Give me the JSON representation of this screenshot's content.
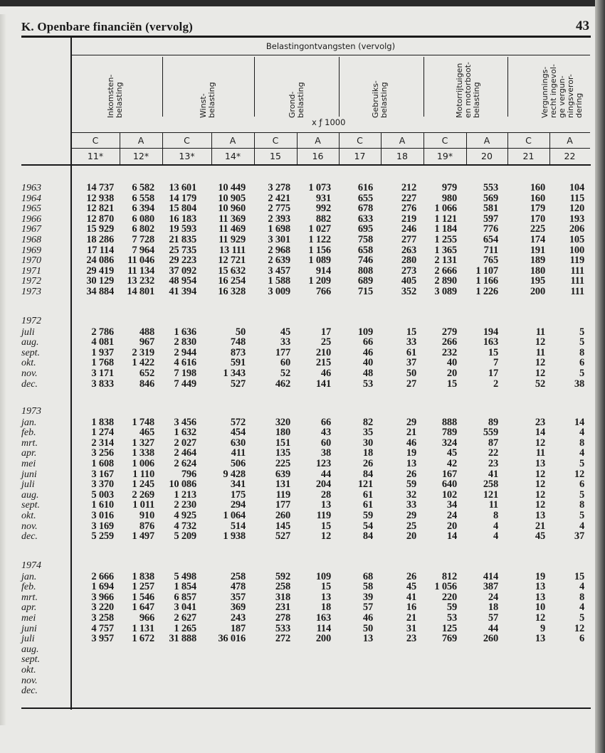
{
  "page": {
    "title": "K.  Openbare financiën (vervolg)",
    "page_number": "43"
  },
  "table": {
    "group_title": "Belastingontvangsten (vervolg)",
    "unit": "x ƒ 1000",
    "column_groups": [
      {
        "lines": [
          "Inkomsten-",
          "belasting"
        ]
      },
      {
        "lines": [
          "Winst-",
          "belasting"
        ]
      },
      {
        "lines": [
          "Grond-",
          "belasting"
        ]
      },
      {
        "lines": [
          "Gebruiks-",
          "belasting"
        ]
      },
      {
        "lines": [
          "Motorrijtuigen",
          "en motorboot-",
          "belasting"
        ]
      },
      {
        "lines": [
          "Vergunnings-",
          "recht ingevol-",
          "ge vergun-",
          "ningsveror-",
          "dering"
        ]
      }
    ],
    "ca_row": [
      "C",
      "A",
      "C",
      "A",
      "C",
      "A",
      "C",
      "A",
      "C",
      "A",
      "C",
      "A"
    ],
    "column_numbers": [
      "11*",
      "12*",
      "13*",
      "14*",
      "15",
      "16",
      "17",
      "18",
      "19*",
      "20",
      "21",
      "22"
    ],
    "sections": [
      {
        "label": "",
        "rows": [
          {
            "label": "1963",
            "values": [
              "14 737",
              "6 582",
              "13 601",
              "10 449",
              "3 278",
              "1 073",
              "616",
              "212",
              "979",
              "553",
              "160",
              "104"
            ]
          },
          {
            "label": "1964",
            "values": [
              "12 938",
              "6 558",
              "14 179",
              "10 905",
              "2 421",
              "931",
              "655",
              "227",
              "980",
              "569",
              "160",
              "115"
            ]
          },
          {
            "label": "1965",
            "values": [
              "12 821",
              "6 394",
              "15 804",
              "10 960",
              "2 775",
              "992",
              "678",
              "276",
              "1 066",
              "581",
              "179",
              "120"
            ]
          },
          {
            "label": "1966",
            "values": [
              "12 870",
              "6 080",
              "16 183",
              "11 369",
              "2 393",
              "882",
              "633",
              "219",
              "1 121",
              "597",
              "170",
              "193"
            ]
          },
          {
            "label": "1967",
            "values": [
              "15 929",
              "6 802",
              "19 593",
              "11 469",
              "1 698",
              "1 027",
              "695",
              "246",
              "1 184",
              "776",
              "225",
              "206"
            ]
          },
          {
            "label": "1968",
            "values": [
              "18 286",
              "7 728",
              "21 835",
              "11 929",
              "3 301",
              "1 122",
              "758",
              "277",
              "1 255",
              "654",
              "174",
              "105"
            ]
          },
          {
            "label": "1969",
            "values": [
              "17 114",
              "7 964",
              "25 735",
              "13 111",
              "2 968",
              "1 156",
              "658",
              "263",
              "1 365",
              "711",
              "191",
              "100"
            ]
          },
          {
            "label": "1970",
            "values": [
              "24 086",
              "11 046",
              "29 223",
              "12 721",
              "2 639",
              "1 089",
              "746",
              "280",
              "2 131",
              "765",
              "189",
              "119"
            ]
          },
          {
            "label": "1971",
            "values": [
              "29 419",
              "11 134",
              "37 092",
              "15 632",
              "3 457",
              "914",
              "808",
              "273",
              "2 666",
              "1 107",
              "180",
              "111"
            ]
          },
          {
            "label": "1972",
            "values": [
              "30 129",
              "13 232",
              "48 954",
              "16 254",
              "1 588",
              "1 209",
              "689",
              "405",
              "2 890",
              "1 166",
              "195",
              "111"
            ]
          },
          {
            "label": "1973",
            "values": [
              "34 884",
              "14 801",
              "41 394",
              "16 328",
              "3 009",
              "766",
              "715",
              "352",
              "3 089",
              "1 226",
              "200",
              "111"
            ]
          }
        ]
      },
      {
        "label": "1972",
        "rows": [
          {
            "label": "juli",
            "values": [
              "2 786",
              "488",
              "1 636",
              "50",
              "45",
              "17",
              "109",
              "15",
              "279",
              "194",
              "11",
              "5"
            ]
          },
          {
            "label": "aug.",
            "values": [
              "4 081",
              "967",
              "2 830",
              "748",
              "33",
              "25",
              "66",
              "33",
              "266",
              "163",
              "12",
              "5"
            ]
          },
          {
            "label": "sept.",
            "values": [
              "1 937",
              "2 319",
              "2 944",
              "873",
              "177",
              "210",
              "46",
              "61",
              "232",
              "15",
              "11",
              "8"
            ]
          },
          {
            "label": "okt.",
            "values": [
              "1 768",
              "1 422",
              "4 616",
              "591",
              "60",
              "215",
              "40",
              "37",
              "40",
              "7",
              "12",
              "6"
            ]
          },
          {
            "label": "nov.",
            "values": [
              "3 171",
              "652",
              "7 198",
              "1 343",
              "52",
              "46",
              "48",
              "50",
              "20",
              "17",
              "12",
              "5"
            ]
          },
          {
            "label": "dec.",
            "values": [
              "3 833",
              "846",
              "7 449",
              "527",
              "462",
              "141",
              "53",
              "27",
              "15",
              "2",
              "52",
              "38"
            ]
          }
        ]
      },
      {
        "label": "1973",
        "rows": [
          {
            "label": "jan.",
            "values": [
              "1 838",
              "1 748",
              "3 456",
              "572",
              "320",
              "66",
              "82",
              "29",
              "888",
              "89",
              "23",
              "14"
            ]
          },
          {
            "label": "feb.",
            "values": [
              "1 274",
              "465",
              "1 632",
              "454",
              "180",
              "43",
              "35",
              "21",
              "789",
              "559",
              "14",
              "4"
            ]
          },
          {
            "label": "mrt.",
            "values": [
              "2 314",
              "1 327",
              "2 027",
              "630",
              "151",
              "60",
              "30",
              "46",
              "324",
              "87",
              "12",
              "8"
            ]
          },
          {
            "label": "apr.",
            "values": [
              "3 256",
              "1 338",
              "2 464",
              "411",
              "135",
              "38",
              "18",
              "19",
              "45",
              "22",
              "11",
              "4"
            ]
          },
          {
            "label": "mei",
            "values": [
              "1 608",
              "1 006",
              "2 624",
              "506",
              "225",
              "123",
              "26",
              "13",
              "42",
              "23",
              "13",
              "5"
            ]
          },
          {
            "label": "juni",
            "values": [
              "3 167",
              "1 110",
              "796",
              "9 428",
              "639",
              "44",
              "84",
              "26",
              "167",
              "41",
              "12",
              "12"
            ]
          },
          {
            "label": "juli",
            "values": [
              "3 370",
              "1 245",
              "10 086",
              "341",
              "131",
              "204",
              "121",
              "59",
              "640",
              "258",
              "12",
              "6"
            ]
          },
          {
            "label": "aug.",
            "values": [
              "5 003",
              "2 269",
              "1 213",
              "175",
              "119",
              "28",
              "61",
              "32",
              "102",
              "121",
              "12",
              "5"
            ]
          },
          {
            "label": "sept.",
            "values": [
              "1 610",
              "1 011",
              "2 230",
              "294",
              "177",
              "13",
              "61",
              "33",
              "34",
              "11",
              "12",
              "8"
            ]
          },
          {
            "label": "okt.",
            "values": [
              "3 016",
              "910",
              "4 925",
              "1 064",
              "260",
              "119",
              "59",
              "29",
              "24",
              "8",
              "13",
              "5"
            ]
          },
          {
            "label": "nov.",
            "values": [
              "3 169",
              "876",
              "4 732",
              "514",
              "145",
              "15",
              "54",
              "25",
              "20",
              "4",
              "21",
              "4"
            ]
          },
          {
            "label": "dec.",
            "values": [
              "5 259",
              "1 497",
              "5 209",
              "1 938",
              "527",
              "12",
              "84",
              "20",
              "14",
              "4",
              "45",
              "37"
            ]
          }
        ]
      },
      {
        "label": "1974",
        "rows": [
          {
            "label": "jan.",
            "values": [
              "2 666",
              "1 838",
              "5 498",
              "258",
              "592",
              "109",
              "68",
              "26",
              "812",
              "414",
              "19",
              "15"
            ]
          },
          {
            "label": "feb.",
            "values": [
              "1 694",
              "1 257",
              "1 854",
              "478",
              "258",
              "15",
              "58",
              "45",
              "1 056",
              "387",
              "13",
              "4"
            ]
          },
          {
            "label": "mrt.",
            "values": [
              "3 966",
              "1 546",
              "6 857",
              "357",
              "318",
              "13",
              "39",
              "41",
              "220",
              "24",
              "13",
              "8"
            ]
          },
          {
            "label": "apr.",
            "values": [
              "3 220",
              "1 647",
              "3 041",
              "369",
              "231",
              "18",
              "57",
              "16",
              "59",
              "18",
              "10",
              "4"
            ]
          },
          {
            "label": "mei",
            "values": [
              "3 258",
              "966",
              "2 627",
              "243",
              "278",
              "163",
              "46",
              "21",
              "53",
              "57",
              "12",
              "5"
            ]
          },
          {
            "label": "juni",
            "values": [
              "4 757",
              "1 131",
              "1 265",
              "187",
              "533",
              "114",
              "50",
              "31",
              "125",
              "44",
              "9",
              "12"
            ]
          },
          {
            "label": "juli",
            "values": [
              "3 957",
              "1 672",
              "31 888",
              "36 016",
              "272",
              "200",
              "13",
              "23",
              "769",
              "260",
              "13",
              "6"
            ]
          },
          {
            "label": "aug.",
            "values": []
          },
          {
            "label": "sept.",
            "values": []
          },
          {
            "label": "okt.",
            "values": []
          },
          {
            "label": "nov.",
            "values": []
          },
          {
            "label": "dec.",
            "values": []
          }
        ]
      }
    ]
  }
}
